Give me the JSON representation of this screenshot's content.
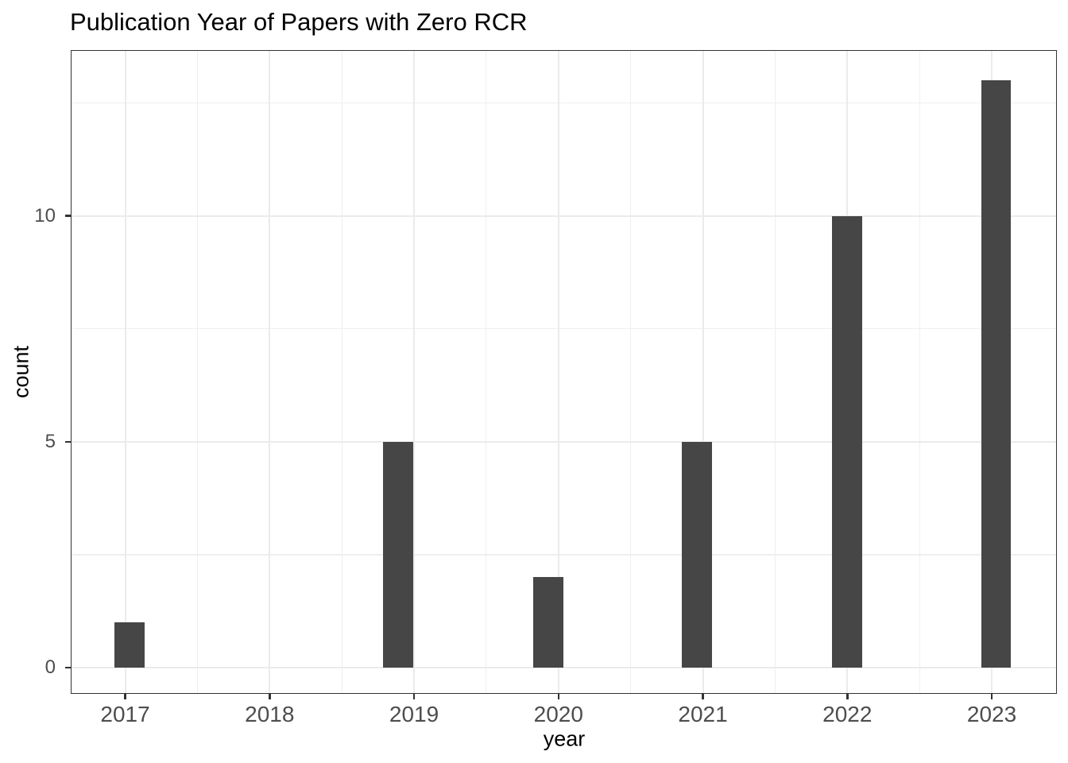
{
  "chart_data": {
    "type": "bar",
    "subtype": "histogram",
    "title": "Publication Year of Papers with Zero RCR",
    "xlabel": "year",
    "ylabel": "count",
    "categories": [
      "2017",
      "2018",
      "2019",
      "2020",
      "2021",
      "2022",
      "2023"
    ],
    "values": [
      1,
      0,
      5,
      2,
      5,
      10,
      13
    ],
    "bars": [
      {
        "label": "2017",
        "count": 1,
        "x": 2017.03
      },
      {
        "label": "2019",
        "count": 5,
        "x": 2018.89
      },
      {
        "label": "2020",
        "count": 2,
        "x": 2019.93
      },
      {
        "label": "2021",
        "count": 5,
        "x": 2020.96
      },
      {
        "label": "2022",
        "count": 10,
        "x": 2022.0
      },
      {
        "label": "2023",
        "count": 13,
        "x": 2023.03
      }
    ],
    "bar_width_x": 0.207,
    "x_axis": {
      "tick_labels": [
        "2017",
        "2018",
        "2019",
        "2020",
        "2021",
        "2022",
        "2023"
      ],
      "tick_values": [
        2017,
        2018,
        2019,
        2020,
        2021,
        2022,
        2023
      ],
      "minor_gridlines": [
        2017.5,
        2018.5,
        2019.5,
        2020.5,
        2021.5,
        2022.5
      ],
      "range": [
        2016.623,
        2023.451
      ]
    },
    "y_axis": {
      "tick_labels": [
        "0",
        "5",
        "10"
      ],
      "tick_values": [
        0,
        5,
        10
      ],
      "major_gridlines": [
        0,
        5,
        10
      ],
      "minor_gridlines": [
        2.5,
        7.5,
        12.5
      ],
      "range": [
        -0.58,
        13.67
      ]
    },
    "grid": true,
    "legend": "none",
    "colors": {
      "bar": "#464646",
      "grid_major": "#ebebeb",
      "grid_minor": "#efefef",
      "panel_border": "#333333",
      "tick_mark": "#333333",
      "tick_label": "#4d4d4d",
      "title": "#000000",
      "axis_title": "#000000",
      "background": "#ffffff"
    }
  }
}
